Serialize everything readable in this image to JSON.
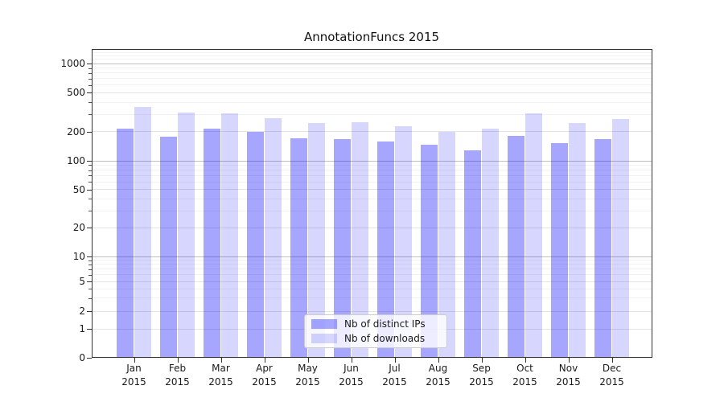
{
  "title": "AnnotationFuncs 2015",
  "chart_data": {
    "type": "bar",
    "categories": [
      "Jan",
      "Feb",
      "Mar",
      "Apr",
      "May",
      "Jun",
      "Jul",
      "Aug",
      "Sep",
      "Oct",
      "Nov",
      "Dec"
    ],
    "x_year_line": "2015",
    "series": [
      {
        "name": "Nb of distinct IPs",
        "color": "#0000ff",
        "alpha": 0.35,
        "values": [
          215,
          178,
          215,
          197,
          170,
          168,
          158,
          145,
          128,
          180,
          152,
          168
        ]
      },
      {
        "name": "Nb of downloads",
        "color": "#0000ff",
        "alpha": 0.16,
        "values": [
          360,
          315,
          305,
          273,
          245,
          250,
          228,
          198,
          215,
          305,
          245,
          268
        ]
      }
    ],
    "title": "AnnotationFuncs 2015",
    "xlabel": "",
    "ylabel": "",
    "yscale": "symlog",
    "yticks": [
      0,
      1,
      2,
      5,
      10,
      20,
      50,
      100,
      200,
      500,
      1000
    ],
    "ylim": [
      0,
      1400
    ],
    "grid": true,
    "legend_position": "lower center"
  },
  "colors": {
    "bar_ips_effective": "#a6a6ff",
    "bar_downloads_effective": "#d9d9ff",
    "grid_major_emph": "#c0c0c0",
    "grid_major": "#e4e4e4",
    "grid_minor": "#f2f2f2",
    "spine": "#333333",
    "text": "#1a1a1a",
    "legend_border": "#cccccc"
  }
}
